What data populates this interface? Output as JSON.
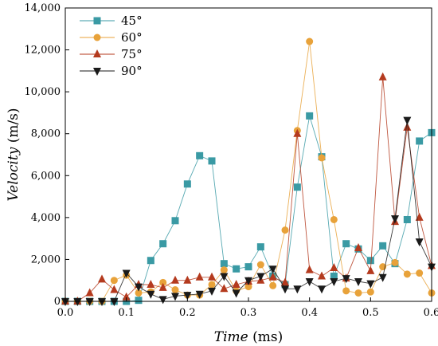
{
  "chart_data": {
    "type": "line",
    "title": "",
    "xlabel": {
      "main": "Time",
      "unit": " (ms)"
    },
    "ylabel": {
      "main": "Velocity",
      "unit": " (m/s)"
    },
    "xlim": [
      0.0,
      0.6
    ],
    "ylim": [
      0,
      14000
    ],
    "x_ticks": [
      0.0,
      0.1,
      0.2,
      0.3,
      0.4,
      0.5,
      0.6
    ],
    "x_tick_labels": [
      "0.0",
      "0.1",
      "0.2",
      "0.3",
      "0.4",
      "0.5",
      "0.6"
    ],
    "y_ticks": [
      0,
      2000,
      4000,
      6000,
      8000,
      10000,
      12000,
      14000
    ],
    "y_tick_labels": [
      "0",
      "2,000",
      "4,000",
      "6,000",
      "8,000",
      "10,000",
      "12,000",
      "14,000"
    ],
    "grid": false,
    "legend_position": "top-left",
    "series": [
      {
        "name": "45°",
        "color": "#3a9aa4",
        "marker": "square",
        "points": [
          [
            0.0,
            0
          ],
          [
            0.02,
            0
          ],
          [
            0.04,
            0
          ],
          [
            0.06,
            0
          ],
          [
            0.08,
            0
          ],
          [
            0.1,
            0
          ],
          [
            0.12,
            50
          ],
          [
            0.14,
            1950
          ],
          [
            0.16,
            2750
          ],
          [
            0.18,
            3850
          ],
          [
            0.2,
            5600
          ],
          [
            0.22,
            6950
          ],
          [
            0.24,
            6700
          ],
          [
            0.26,
            1800
          ],
          [
            0.28,
            1550
          ],
          [
            0.3,
            1650
          ],
          [
            0.32,
            2600
          ],
          [
            0.34,
            1200
          ],
          [
            0.36,
            800
          ],
          [
            0.38,
            5450
          ],
          [
            0.4,
            8850
          ],
          [
            0.42,
            6900
          ],
          [
            0.44,
            1200
          ],
          [
            0.46,
            2750
          ],
          [
            0.48,
            2500
          ],
          [
            0.5,
            1950
          ],
          [
            0.52,
            2650
          ],
          [
            0.54,
            1800
          ],
          [
            0.56,
            3900
          ],
          [
            0.58,
            7650
          ],
          [
            0.6,
            8050
          ]
        ]
      },
      {
        "name": "60°",
        "color": "#e8a23a",
        "marker": "circle",
        "points": [
          [
            0.0,
            0
          ],
          [
            0.02,
            0
          ],
          [
            0.04,
            0
          ],
          [
            0.06,
            0
          ],
          [
            0.08,
            1000
          ],
          [
            0.1,
            1250
          ],
          [
            0.12,
            400
          ],
          [
            0.14,
            450
          ],
          [
            0.16,
            900
          ],
          [
            0.18,
            550
          ],
          [
            0.2,
            300
          ],
          [
            0.22,
            300
          ],
          [
            0.24,
            800
          ],
          [
            0.26,
            1500
          ],
          [
            0.28,
            500
          ],
          [
            0.3,
            700
          ],
          [
            0.32,
            1750
          ],
          [
            0.34,
            750
          ],
          [
            0.36,
            3400
          ],
          [
            0.38,
            8150
          ],
          [
            0.4,
            12400
          ],
          [
            0.42,
            6850
          ],
          [
            0.44,
            3900
          ],
          [
            0.46,
            500
          ],
          [
            0.48,
            400
          ],
          [
            0.5,
            450
          ],
          [
            0.52,
            1650
          ],
          [
            0.54,
            1850
          ],
          [
            0.56,
            1300
          ],
          [
            0.58,
            1350
          ],
          [
            0.6,
            400
          ]
        ]
      },
      {
        "name": "75°",
        "color": "#b43a1e",
        "marker": "triangle-up",
        "points": [
          [
            0.0,
            0
          ],
          [
            0.02,
            0
          ],
          [
            0.04,
            400
          ],
          [
            0.06,
            1050
          ],
          [
            0.08,
            550
          ],
          [
            0.1,
            200
          ],
          [
            0.12,
            800
          ],
          [
            0.14,
            800
          ],
          [
            0.16,
            650
          ],
          [
            0.18,
            1000
          ],
          [
            0.2,
            1000
          ],
          [
            0.22,
            1150
          ],
          [
            0.24,
            1150
          ],
          [
            0.26,
            600
          ],
          [
            0.28,
            800
          ],
          [
            0.3,
            950
          ],
          [
            0.32,
            1000
          ],
          [
            0.34,
            1150
          ],
          [
            0.36,
            900
          ],
          [
            0.38,
            8000
          ],
          [
            0.4,
            1500
          ],
          [
            0.42,
            1200
          ],
          [
            0.44,
            1600
          ],
          [
            0.46,
            1100
          ],
          [
            0.48,
            2550
          ],
          [
            0.5,
            1450
          ],
          [
            0.52,
            10700
          ],
          [
            0.54,
            3800
          ],
          [
            0.56,
            8300
          ],
          [
            0.58,
            4000
          ],
          [
            0.6,
            1700
          ]
        ]
      },
      {
        "name": "90°",
        "color": "#1a1a1a",
        "marker": "triangle-down",
        "points": [
          [
            0.0,
            0
          ],
          [
            0.02,
            0
          ],
          [
            0.04,
            0
          ],
          [
            0.06,
            0
          ],
          [
            0.08,
            0
          ],
          [
            0.1,
            1350
          ],
          [
            0.12,
            700
          ],
          [
            0.14,
            350
          ],
          [
            0.16,
            100
          ],
          [
            0.18,
            250
          ],
          [
            0.2,
            300
          ],
          [
            0.22,
            350
          ],
          [
            0.24,
            500
          ],
          [
            0.26,
            1200
          ],
          [
            0.28,
            400
          ],
          [
            0.3,
            1000
          ],
          [
            0.32,
            1200
          ],
          [
            0.34,
            1550
          ],
          [
            0.36,
            600
          ],
          [
            0.38,
            600
          ],
          [
            0.4,
            950
          ],
          [
            0.42,
            600
          ],
          [
            0.44,
            950
          ],
          [
            0.46,
            1100
          ],
          [
            0.48,
            950
          ],
          [
            0.5,
            850
          ],
          [
            0.52,
            1150
          ],
          [
            0.54,
            3950
          ],
          [
            0.56,
            8650
          ],
          [
            0.58,
            2850
          ],
          [
            0.6,
            1650
          ]
        ]
      }
    ]
  }
}
